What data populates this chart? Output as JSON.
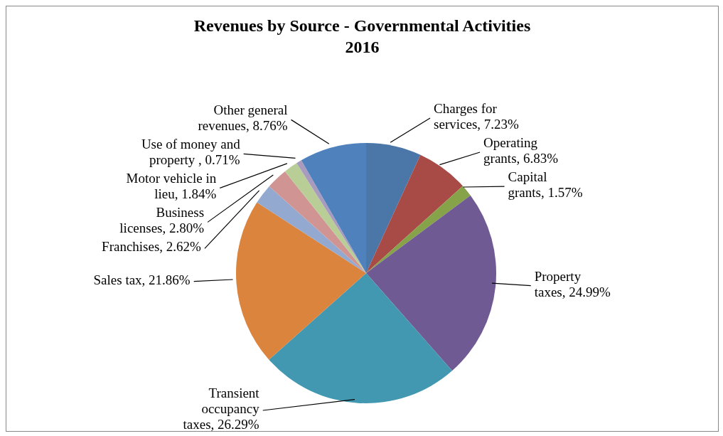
{
  "chart_data": {
    "type": "pie",
    "title": "Revenues by Source - Governmental Activities\n2016",
    "categories": [
      "Charges for services",
      "Operating grants",
      "Capital grants",
      "Property taxes",
      "Transient occupancy taxes",
      "Sales tax",
      "Franchises",
      "Business licenses",
      "Motor vehicle in lieu",
      "Use of money and property ",
      "Other general revenues"
    ],
    "values": [
      7.23,
      6.83,
      1.57,
      24.99,
      26.29,
      21.86,
      2.62,
      2.8,
      1.84,
      0.71,
      8.76
    ],
    "value_labels": [
      "7.23%",
      "6.83%",
      "1.57%",
      "24.99%",
      "26.29%",
      "21.86%",
      "2.62%",
      "2.80%",
      "1.84%",
      "0.71%",
      "8.76%"
    ],
    "colors": [
      "#4a76a8",
      "#a84a46",
      "#86a34a",
      "#705a93",
      "#4198b0",
      "#db843d",
      "#93a9d0",
      "#d09593",
      "#b9cd96",
      "#a99bbd",
      "#4f81bd"
    ],
    "legend": false
  }
}
